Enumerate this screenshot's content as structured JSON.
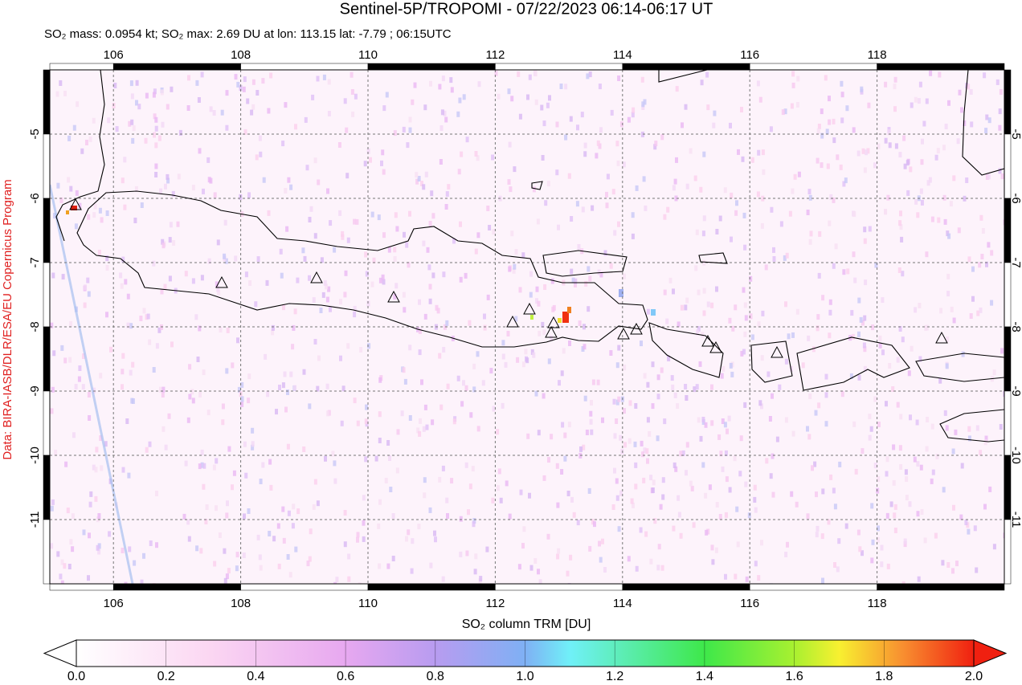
{
  "title": "Sentinel-5P/TROPOMI - 07/22/2023 06:14-06:17 UT",
  "subtitle": "SO₂ mass: 0.0954 kt; SO₂ max: 2.69 DU at lon: 113.15 lat: -7.79 ; 06:15UTC",
  "credit": "Data: BIRA-IASB/DLR/ESA/EU Copernicus Program",
  "map": {
    "xlim": [
      105,
      120
    ],
    "ylim": [
      -12,
      -4
    ],
    "xticks": [
      106,
      108,
      110,
      112,
      114,
      116,
      118
    ],
    "yticks": [
      -5,
      -6,
      -7,
      -8,
      -9,
      -10,
      -11
    ]
  },
  "colorbar": {
    "label": "SO₂ column TRM [DU]",
    "lim": [
      0,
      2
    ],
    "ticks": [
      {
        "value": 0,
        "label": "0.0"
      },
      {
        "value": 0.2,
        "label": "0.2"
      },
      {
        "value": 0.4,
        "label": "0.4"
      },
      {
        "value": 0.6,
        "label": "0.6"
      },
      {
        "value": 0.8,
        "label": "0.8"
      },
      {
        "value": 1,
        "label": "1.0"
      },
      {
        "value": 1.2,
        "label": "1.2"
      },
      {
        "value": 1.4,
        "label": "1.4"
      },
      {
        "value": 1.6,
        "label": "1.6"
      },
      {
        "value": 1.8,
        "label": "1.8"
      },
      {
        "value": 2,
        "label": "2.0"
      }
    ]
  }
}
